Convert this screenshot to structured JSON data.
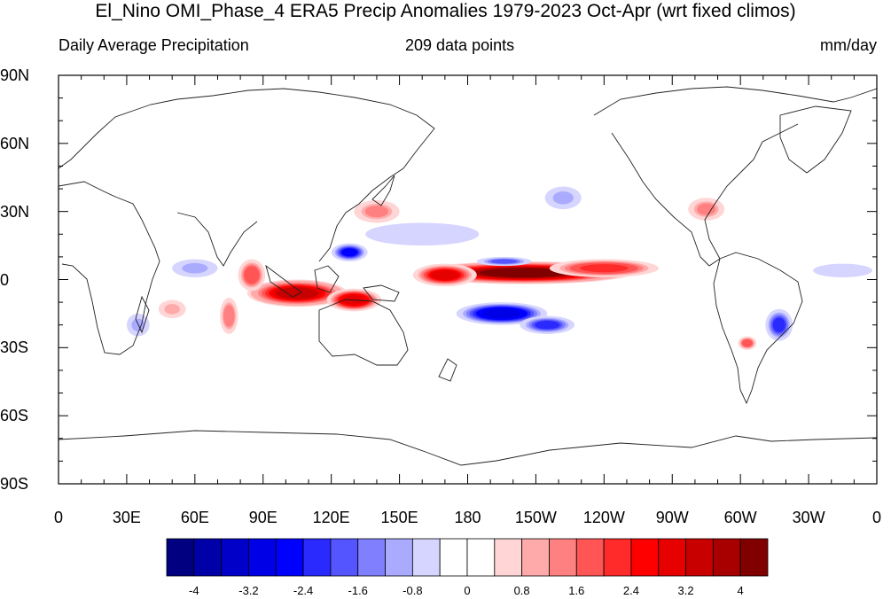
{
  "title": "El_Nino OMI_Phase_4 ERA5 Precip Anomalies 1979-2023 Oct-Apr (wrt fixed climos)",
  "subtitle_left": "Daily Average Precipitation",
  "subtitle_center": "209 data points",
  "subtitle_right": "mm/day",
  "map": {
    "projection": "cylindrical-equidistant",
    "lon_range": [
      0,
      360
    ],
    "lat_range": [
      -90,
      90
    ],
    "lat_ticks": [
      {
        "value": 90,
        "label": "90N"
      },
      {
        "value": 60,
        "label": "60N"
      },
      {
        "value": 30,
        "label": "30N"
      },
      {
        "value": 0,
        "label": "0"
      },
      {
        "value": -30,
        "label": "30S"
      },
      {
        "value": -60,
        "label": "60S"
      },
      {
        "value": -90,
        "label": "90S"
      }
    ],
    "lon_ticks": [
      {
        "value": 0,
        "label": "0"
      },
      {
        "value": 30,
        "label": "30E"
      },
      {
        "value": 60,
        "label": "60E"
      },
      {
        "value": 90,
        "label": "90E"
      },
      {
        "value": 120,
        "label": "120E"
      },
      {
        "value": 150,
        "label": "150E"
      },
      {
        "value": 180,
        "label": "180"
      },
      {
        "value": 210,
        "label": "150W"
      },
      {
        "value": 240,
        "label": "120W"
      },
      {
        "value": 270,
        "label": "90W"
      },
      {
        "value": 300,
        "label": "60W"
      },
      {
        "value": 330,
        "label": "30W"
      },
      {
        "value": 360,
        "label": "0"
      }
    ],
    "anomaly_regions": [
      {
        "lon": 205,
        "lat": 3,
        "rx": 48,
        "ry": 5,
        "value": 4.4
      },
      {
        "lon": 240,
        "lat": 5,
        "rx": 24,
        "ry": 4,
        "value": 2.6
      },
      {
        "lon": 170,
        "lat": 2,
        "rx": 14,
        "ry": 5,
        "value": 3.2
      },
      {
        "lon": 105,
        "lat": -6,
        "rx": 22,
        "ry": 6,
        "value": 3.6
      },
      {
        "lon": 130,
        "lat": -9,
        "rx": 12,
        "ry": 5,
        "value": 3.4
      },
      {
        "lon": 85,
        "lat": 2,
        "rx": 6,
        "ry": 7,
        "value": 2.2
      },
      {
        "lon": 75,
        "lat": -16,
        "rx": 4,
        "ry": 8,
        "value": 1.8
      },
      {
        "lon": 50,
        "lat": -13,
        "rx": 6,
        "ry": 4,
        "value": 1.4
      },
      {
        "lon": 140,
        "lat": 30,
        "rx": 10,
        "ry": 5,
        "value": 1.6
      },
      {
        "lon": 285,
        "lat": 31,
        "rx": 8,
        "ry": 5,
        "value": 1.5
      },
      {
        "lon": 303,
        "lat": -28,
        "rx": 4,
        "ry": 3,
        "value": 2.2
      },
      {
        "lon": 195,
        "lat": -15,
        "rx": 20,
        "ry": 5,
        "value": -3.4
      },
      {
        "lon": 215,
        "lat": -20,
        "rx": 12,
        "ry": 4,
        "value": -2.4
      },
      {
        "lon": 128,
        "lat": 12,
        "rx": 8,
        "ry": 4,
        "value": -2.8
      },
      {
        "lon": 196,
        "lat": 8,
        "rx": 12,
        "ry": 2,
        "value": -2.0
      },
      {
        "lon": 317,
        "lat": -20,
        "rx": 6,
        "ry": 7,
        "value": -2.4
      },
      {
        "lon": 160,
        "lat": 20,
        "rx": 25,
        "ry": 5,
        "value": -0.8
      },
      {
        "lon": 60,
        "lat": 5,
        "rx": 10,
        "ry": 4,
        "value": -1.2
      },
      {
        "lon": 345,
        "lat": 4,
        "rx": 13,
        "ry": 3,
        "value": -0.8
      },
      {
        "lon": 35,
        "lat": -20,
        "rx": 5,
        "ry": 5,
        "value": -1.2
      },
      {
        "lon": 222,
        "lat": 36,
        "rx": 8,
        "ry": 5,
        "value": -1.2
      }
    ]
  },
  "colorbar": {
    "colors": [
      "#000080",
      "#0000a8",
      "#0000c8",
      "#0000e6",
      "#0000ff",
      "#2a2aff",
      "#5555ff",
      "#8080ff",
      "#aaaaff",
      "#d5d5ff",
      "#ffffff",
      "#ffffff",
      "#ffd5d5",
      "#ffaaaa",
      "#ff8080",
      "#ff5555",
      "#ff2a2a",
      "#ff0000",
      "#e60000",
      "#c80000",
      "#a80000",
      "#800000"
    ],
    "levels": [
      -4,
      -3.6,
      -3.2,
      -2.8,
      -2.4,
      -2,
      -1.6,
      -1.2,
      -0.8,
      -0.4,
      0,
      0.4,
      0.8,
      1.2,
      1.6,
      2,
      2.4,
      2.8,
      3.2,
      3.6,
      4
    ],
    "labels": [
      {
        "value": -4,
        "label": "-4"
      },
      {
        "value": -3.2,
        "label": "-3.2"
      },
      {
        "value": -2.4,
        "label": "-2.4"
      },
      {
        "value": -1.6,
        "label": "-1.6"
      },
      {
        "value": -0.8,
        "label": "-0.8"
      },
      {
        "value": 0,
        "label": "0"
      },
      {
        "value": 0.8,
        "label": "0.8"
      },
      {
        "value": 1.6,
        "label": "1.6"
      },
      {
        "value": 2.4,
        "label": "2.4"
      },
      {
        "value": 3.2,
        "label": "3.2"
      },
      {
        "value": 4,
        "label": "4"
      }
    ]
  }
}
